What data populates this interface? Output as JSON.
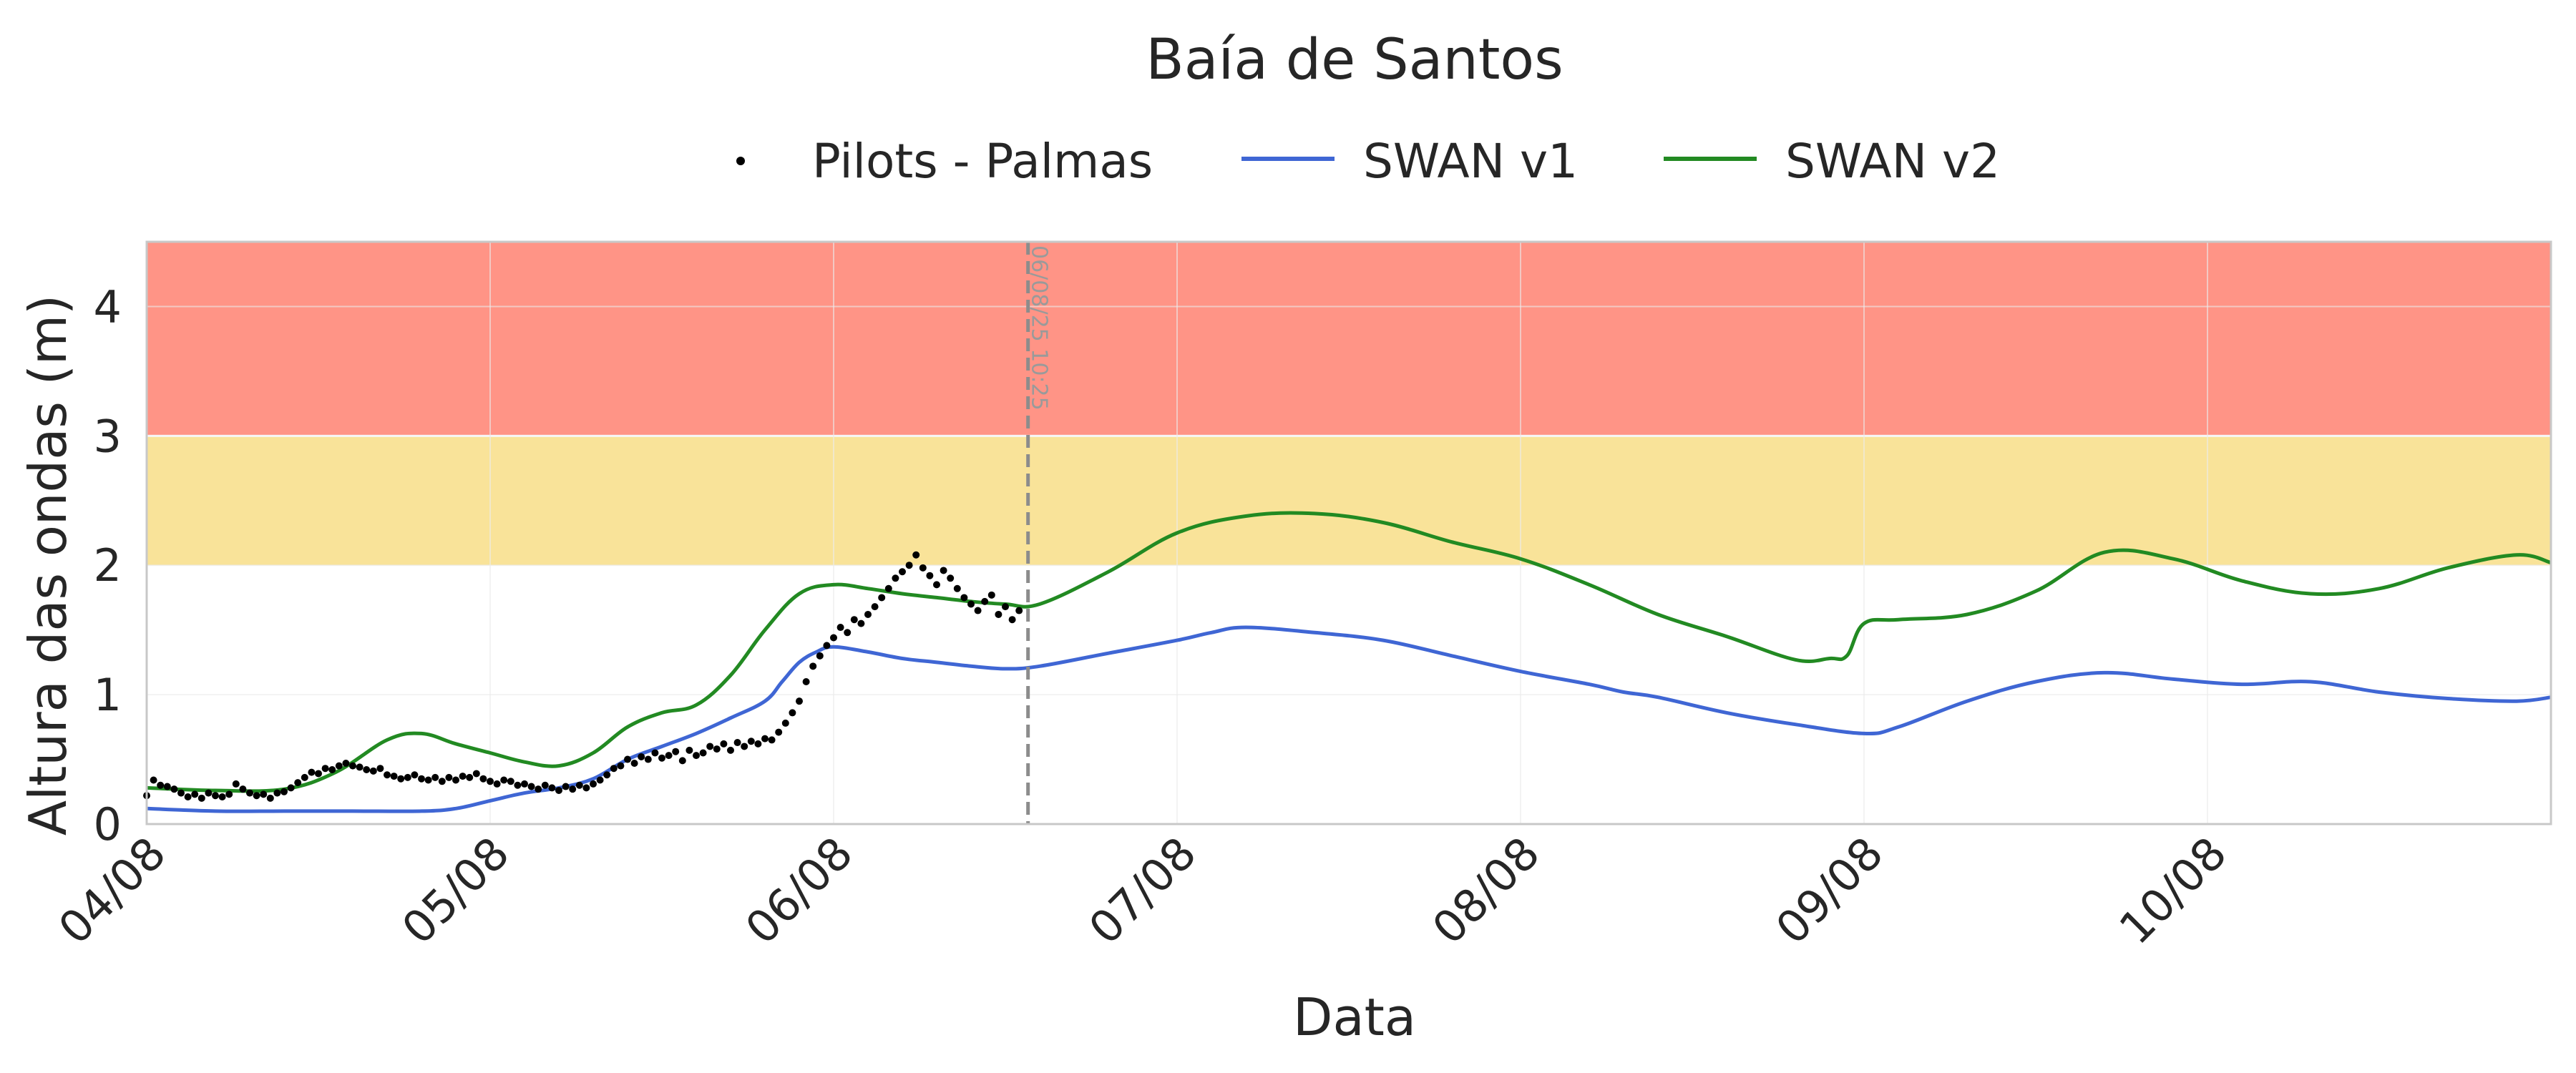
{
  "chart_data": {
    "type": "line",
    "title": "Baía de Santos",
    "xlabel": "Data",
    "ylabel": "Altura das ondas (m)",
    "x_ticks": [
      "04/08",
      "05/08",
      "06/08",
      "07/08",
      "08/08",
      "09/08",
      "10/08"
    ],
    "x_tick_positions_days": [
      0,
      1,
      2,
      3,
      4,
      5,
      6
    ],
    "x_unit": "days since 04/08 00:00",
    "xlim": [
      0,
      7.0
    ],
    "ylim": [
      0,
      4.5
    ],
    "y_ticks": [
      0,
      1,
      2,
      3,
      4
    ],
    "grid": true,
    "legend_position": "top-center",
    "bands": [
      {
        "from": 3.0,
        "to": 4.5,
        "color": "#ff9486"
      },
      {
        "from": 2.0,
        "to": 3.0,
        "color": "#f9e399"
      }
    ],
    "vertical_marker": {
      "x": 2.566,
      "label": "06/08/25 10:25",
      "color": "#8c8c8c"
    },
    "series": [
      {
        "name": "Pilots - Palmas",
        "kind": "scatter",
        "color": "#000000",
        "x": [
          0.0,
          0.02,
          0.04,
          0.06,
          0.08,
          0.1,
          0.12,
          0.14,
          0.16,
          0.18,
          0.2,
          0.22,
          0.24,
          0.26,
          0.28,
          0.3,
          0.32,
          0.34,
          0.36,
          0.38,
          0.4,
          0.42,
          0.44,
          0.46,
          0.48,
          0.5,
          0.52,
          0.54,
          0.56,
          0.58,
          0.6,
          0.62,
          0.64,
          0.66,
          0.68,
          0.7,
          0.72,
          0.74,
          0.76,
          0.78,
          0.8,
          0.82,
          0.84,
          0.86,
          0.88,
          0.9,
          0.92,
          0.94,
          0.96,
          0.98,
          1.0,
          1.02,
          1.04,
          1.06,
          1.08,
          1.1,
          1.12,
          1.14,
          1.16,
          1.18,
          1.2,
          1.22,
          1.24,
          1.26,
          1.28,
          1.3,
          1.32,
          1.34,
          1.36,
          1.38,
          1.4,
          1.42,
          1.44,
          1.46,
          1.48,
          1.5,
          1.52,
          1.54,
          1.56,
          1.58,
          1.6,
          1.62,
          1.64,
          1.66,
          1.68,
          1.7,
          1.72,
          1.74,
          1.76,
          1.78,
          1.8,
          1.82,
          1.84,
          1.86,
          1.88,
          1.9,
          1.92,
          1.94,
          1.96,
          1.98,
          2.0,
          2.02,
          2.04,
          2.06,
          2.08,
          2.1,
          2.12,
          2.14,
          2.16,
          2.18,
          2.2,
          2.22,
          2.24,
          2.26,
          2.28,
          2.3,
          2.32,
          2.34,
          2.36,
          2.38,
          2.4,
          2.42,
          2.44,
          2.46,
          2.48,
          2.5,
          2.52,
          2.54
        ],
        "y": [
          0.22,
          0.34,
          0.3,
          0.29,
          0.27,
          0.24,
          0.21,
          0.23,
          0.2,
          0.24,
          0.22,
          0.21,
          0.23,
          0.31,
          0.27,
          0.24,
          0.22,
          0.23,
          0.2,
          0.24,
          0.25,
          0.28,
          0.32,
          0.36,
          0.4,
          0.39,
          0.43,
          0.42,
          0.45,
          0.47,
          0.45,
          0.44,
          0.42,
          0.41,
          0.43,
          0.38,
          0.37,
          0.35,
          0.36,
          0.38,
          0.35,
          0.34,
          0.36,
          0.33,
          0.36,
          0.34,
          0.37,
          0.36,
          0.39,
          0.35,
          0.33,
          0.31,
          0.34,
          0.33,
          0.3,
          0.31,
          0.29,
          0.27,
          0.3,
          0.28,
          0.26,
          0.29,
          0.27,
          0.3,
          0.28,
          0.31,
          0.34,
          0.38,
          0.43,
          0.45,
          0.5,
          0.47,
          0.52,
          0.5,
          0.55,
          0.51,
          0.53,
          0.56,
          0.49,
          0.57,
          0.53,
          0.55,
          0.6,
          0.58,
          0.62,
          0.57,
          0.63,
          0.6,
          0.64,
          0.62,
          0.66,
          0.65,
          0.71,
          0.78,
          0.86,
          0.95,
          1.1,
          1.22,
          1.3,
          1.38,
          1.44,
          1.52,
          1.48,
          1.58,
          1.55,
          1.62,
          1.68,
          1.75,
          1.82,
          1.9,
          1.95,
          2.0,
          2.08,
          1.98,
          1.92,
          1.85,
          1.96,
          1.9,
          1.82,
          1.75,
          1.7,
          1.65,
          1.72,
          1.77,
          1.62,
          1.68,
          1.58,
          1.65
        ]
      },
      {
        "name": "SWAN v1",
        "kind": "line",
        "color": "#3f66d4",
        "x": [
          0.0,
          0.2,
          0.4,
          0.6,
          0.8,
          0.9,
          1.0,
          1.1,
          1.2,
          1.3,
          1.4,
          1.5,
          1.6,
          1.7,
          1.8,
          1.85,
          1.9,
          1.95,
          2.0,
          2.1,
          2.2,
          2.3,
          2.4,
          2.5,
          2.6,
          2.8,
          3.0,
          3.1,
          3.2,
          3.4,
          3.6,
          3.8,
          4.0,
          4.2,
          4.3,
          4.4,
          4.6,
          4.8,
          5.0,
          5.1,
          5.3,
          5.5,
          5.7,
          5.9,
          6.1,
          6.3,
          6.5,
          6.7,
          6.9,
          7.0
        ],
        "y": [
          0.12,
          0.1,
          0.1,
          0.1,
          0.1,
          0.12,
          0.18,
          0.24,
          0.28,
          0.35,
          0.5,
          0.6,
          0.7,
          0.82,
          0.95,
          1.1,
          1.25,
          1.33,
          1.37,
          1.33,
          1.28,
          1.25,
          1.22,
          1.2,
          1.22,
          1.32,
          1.42,
          1.48,
          1.52,
          1.48,
          1.42,
          1.3,
          1.18,
          1.08,
          1.02,
          0.98,
          0.86,
          0.77,
          0.7,
          0.75,
          0.95,
          1.1,
          1.17,
          1.12,
          1.08,
          1.1,
          1.02,
          0.97,
          0.95,
          0.98
        ]
      },
      {
        "name": "SWAN v2",
        "kind": "line",
        "color": "#228a22",
        "x": [
          0.0,
          0.2,
          0.4,
          0.55,
          0.7,
          0.8,
          0.9,
          1.0,
          1.1,
          1.2,
          1.3,
          1.4,
          1.5,
          1.6,
          1.7,
          1.8,
          1.9,
          2.0,
          2.1,
          2.2,
          2.3,
          2.4,
          2.5,
          2.6,
          2.8,
          3.0,
          3.2,
          3.4,
          3.6,
          3.8,
          4.0,
          4.2,
          4.4,
          4.6,
          4.8,
          4.9,
          4.95,
          5.0,
          5.1,
          5.3,
          5.5,
          5.7,
          5.9,
          6.1,
          6.3,
          6.5,
          6.7,
          6.9,
          7.0
        ],
        "y": [
          0.28,
          0.26,
          0.27,
          0.4,
          0.65,
          0.7,
          0.62,
          0.55,
          0.48,
          0.45,
          0.55,
          0.75,
          0.86,
          0.92,
          1.15,
          1.5,
          1.78,
          1.85,
          1.82,
          1.78,
          1.75,
          1.72,
          1.7,
          1.7,
          1.95,
          2.25,
          2.38,
          2.4,
          2.33,
          2.18,
          2.05,
          1.85,
          1.62,
          1.45,
          1.27,
          1.28,
          1.3,
          1.55,
          1.58,
          1.62,
          1.8,
          2.1,
          2.05,
          1.88,
          1.78,
          1.82,
          1.98,
          2.08,
          2.02
        ]
      }
    ]
  }
}
